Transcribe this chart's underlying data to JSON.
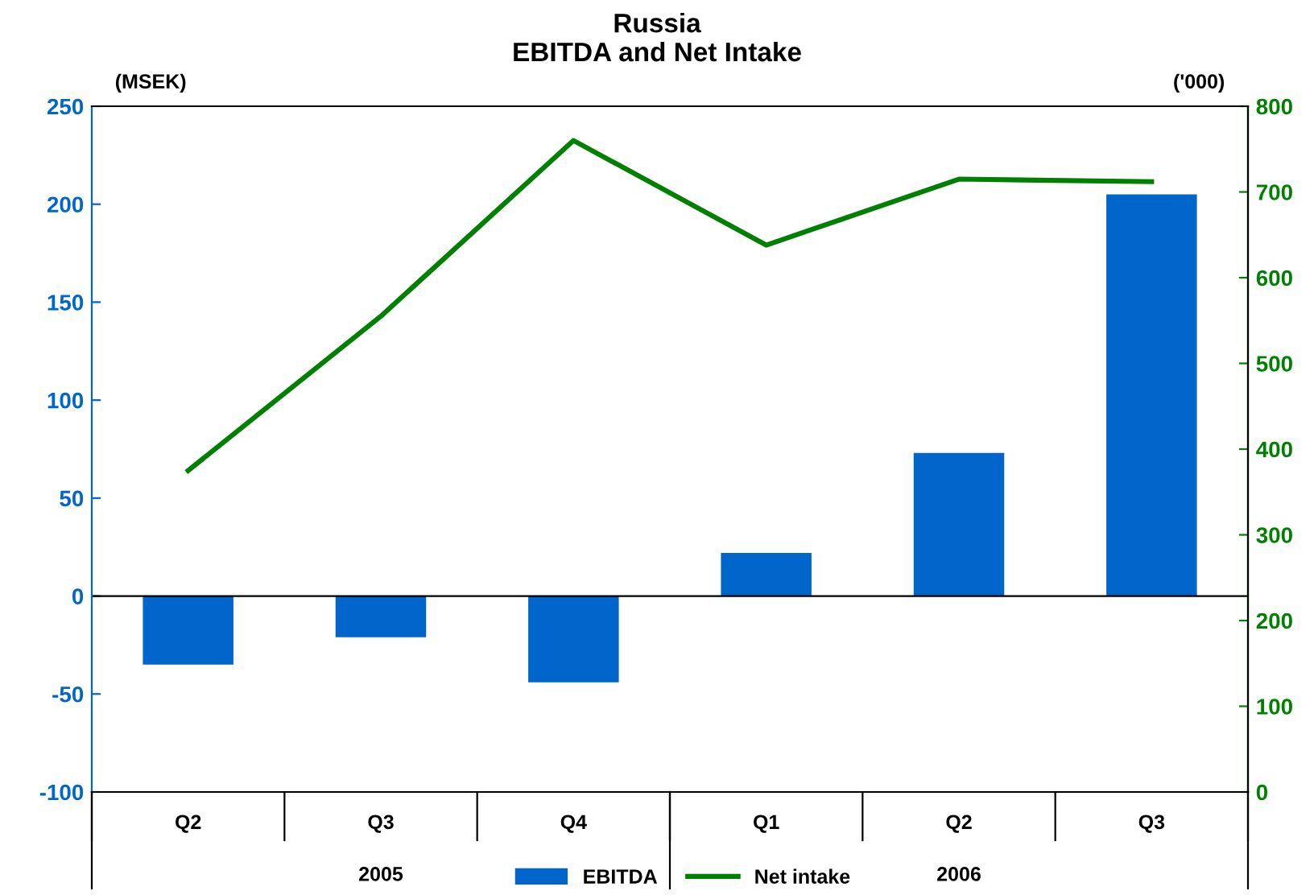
{
  "chart_data": {
    "type": "bar",
    "title": "Russia\nEBITDA and Net Intake",
    "ylabel": "(MSEK)",
    "y2label": "('000)",
    "categories": [
      "Q2",
      "Q3",
      "Q4",
      "Q1",
      "Q2",
      "Q3"
    ],
    "annotations": [
      "2005",
      "2006"
    ],
    "ref_lines": [
      {
        "axis": "y",
        "value": 0,
        "color": "#000000"
      }
    ],
    "series": [
      {
        "name": "EBITDA",
        "color": "#0066cc",
        "values": [
          -35,
          -21,
          -44,
          22,
          73,
          205
        ]
      },
      {
        "name": "Net intake",
        "type": "line",
        "axis": "y2",
        "color": "#008000",
        "values": [
          375,
          555,
          760,
          638,
          715,
          712
        ]
      }
    ],
    "ylim": [
      -100,
      250
    ],
    "yticks": [
      -100,
      -50,
      0,
      50,
      100,
      150,
      200,
      250
    ],
    "y2lim": [
      0,
      800
    ],
    "y2ticks": [
      0,
      100,
      200,
      300,
      400,
      500,
      600,
      700,
      800
    ],
    "grid": false,
    "legend": "bottom",
    "marker": "none",
    "line_style": "solid"
  }
}
